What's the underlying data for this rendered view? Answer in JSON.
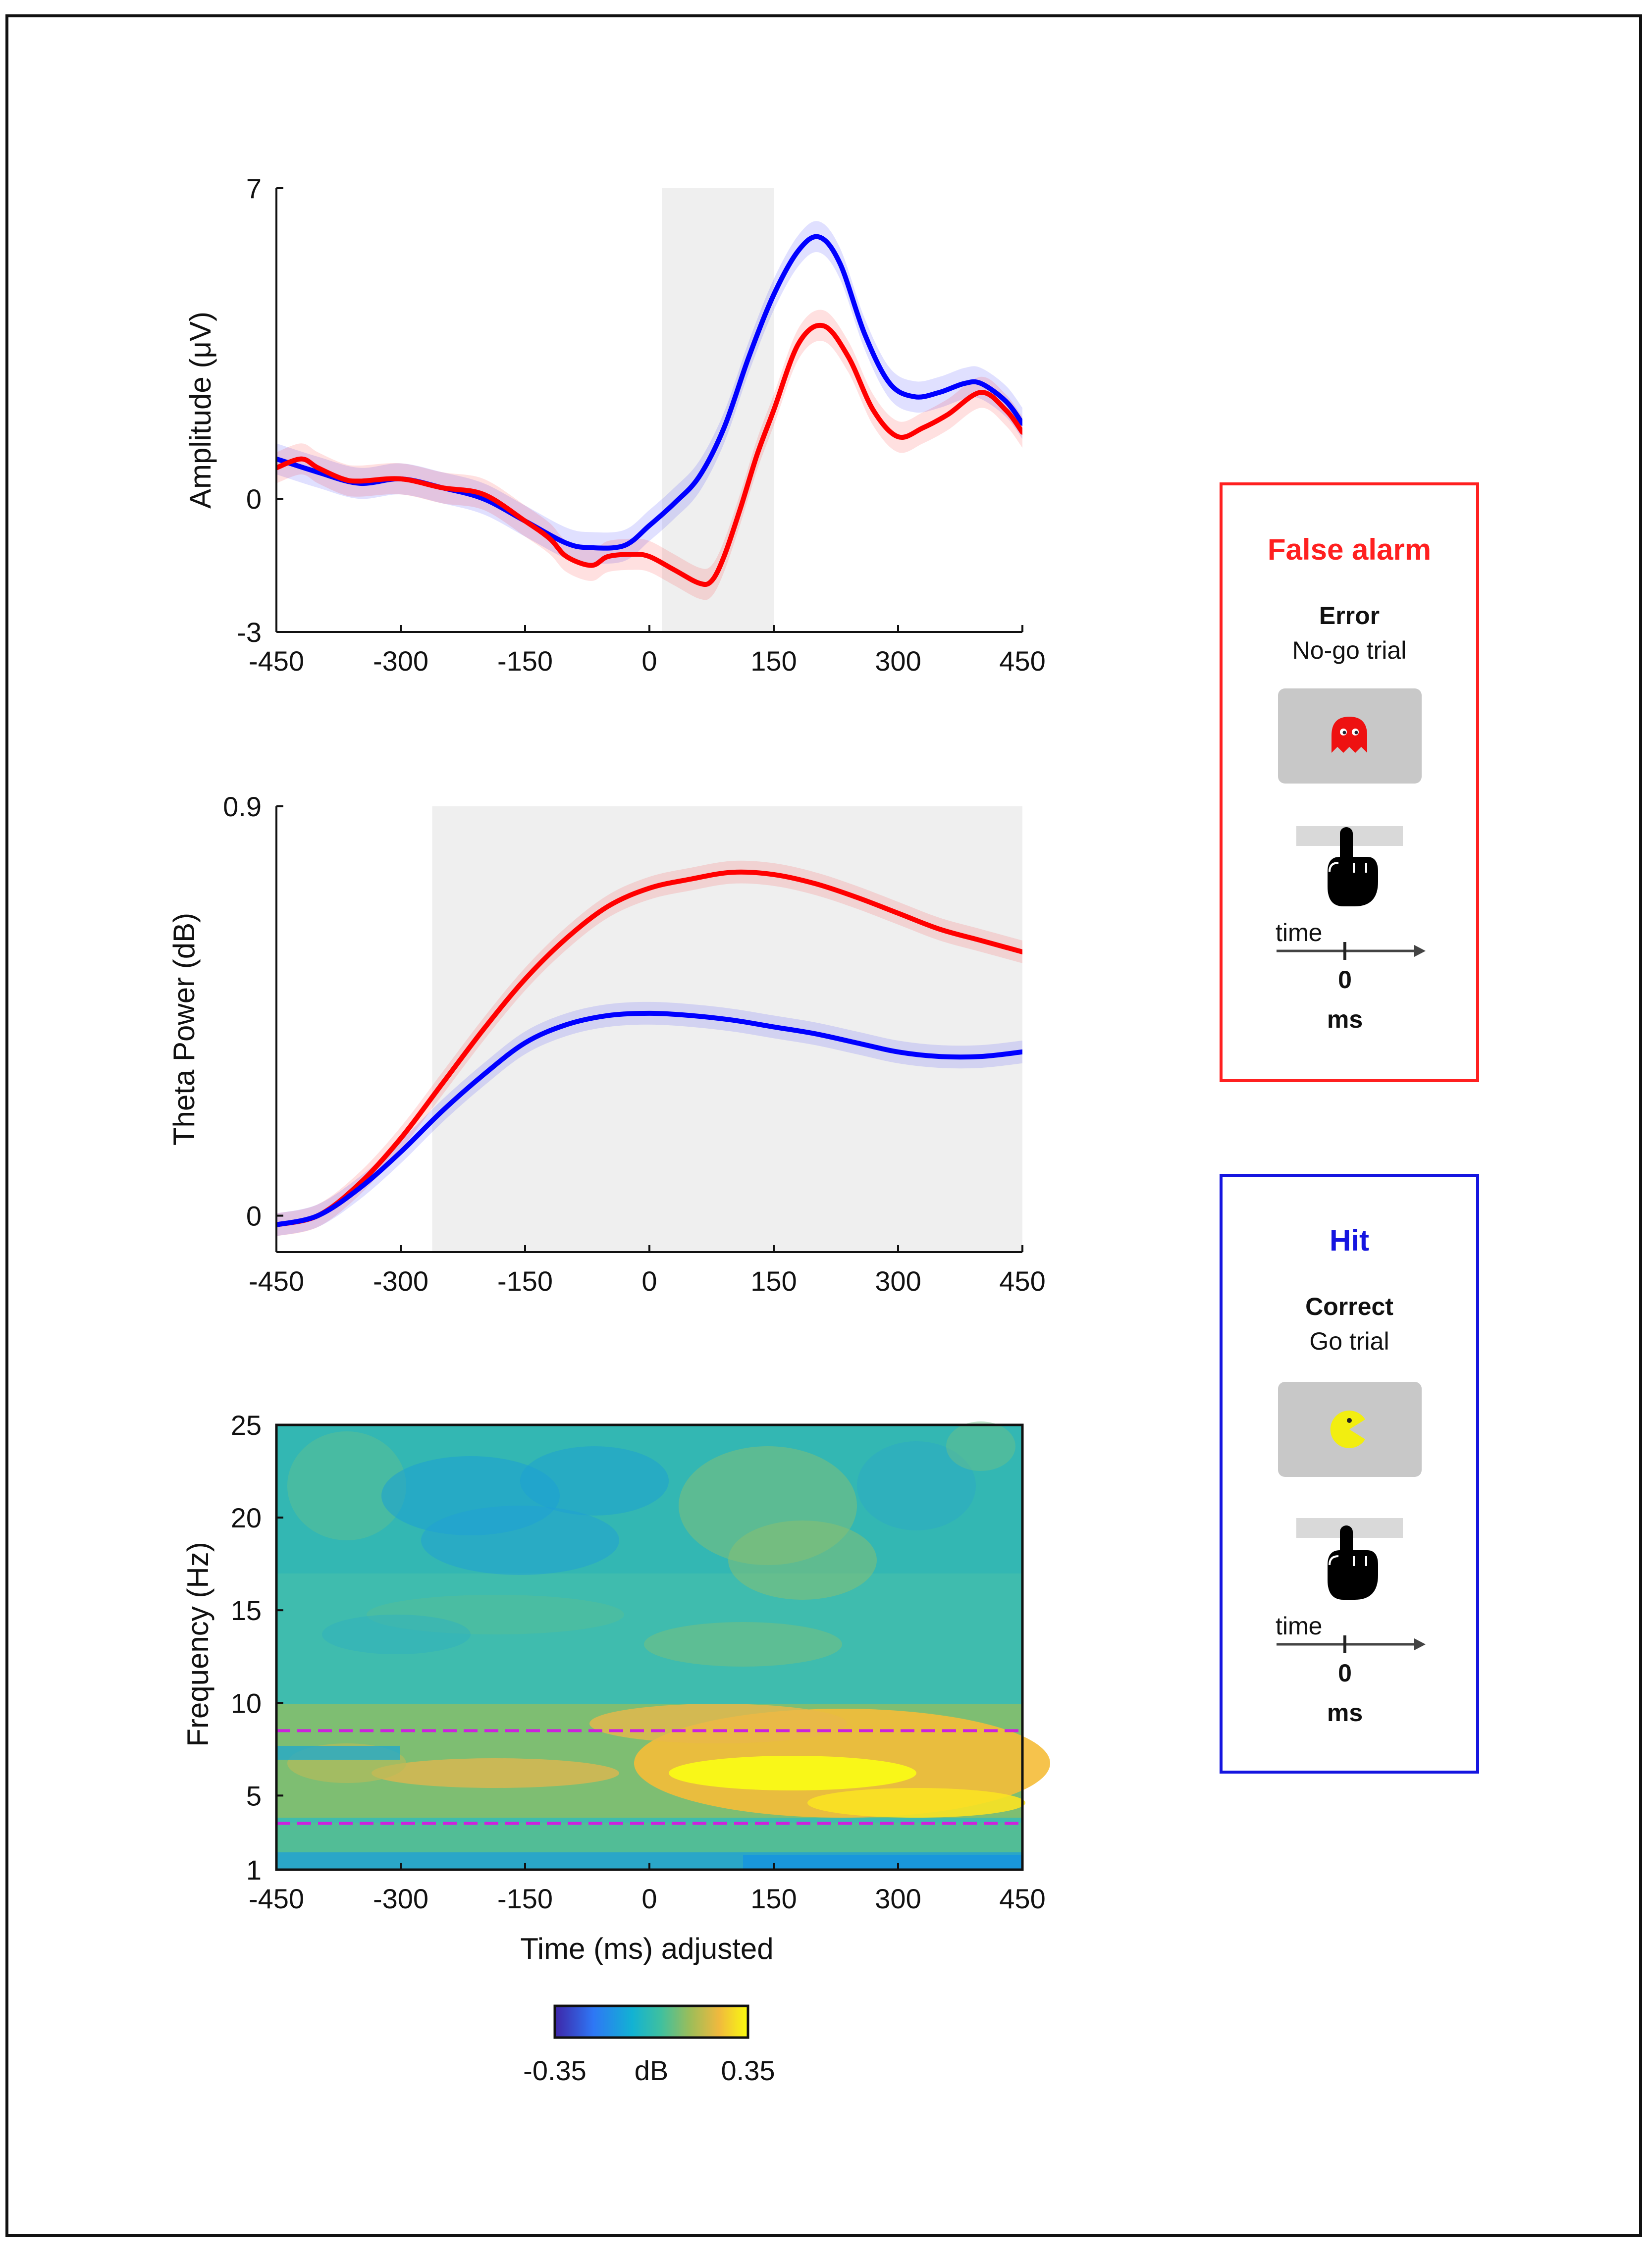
{
  "colors": {
    "false_alarm": "#ff0000",
    "hit": "#0000ff",
    "shade": "#efefef"
  },
  "chart_data": [
    {
      "type": "line",
      "ylabel": "Amplitude (μV)",
      "xlim": [
        -450,
        450
      ],
      "ylim": [
        -3,
        7
      ],
      "xticks": [
        "-450",
        "-300",
        "-150",
        "0",
        "150",
        "300",
        "450"
      ],
      "yticks": [
        "-3",
        "0",
        "7"
      ],
      "shaded_interval": [
        15,
        150
      ],
      "series": [
        {
          "name": "Hit",
          "color": "#0000ff",
          "x": [
            -450,
            -400,
            -350,
            -300,
            -250,
            -200,
            -150,
            -100,
            -70,
            -30,
            0,
            30,
            60,
            90,
            120,
            150,
            180,
            205,
            230,
            260,
            290,
            320,
            350,
            380,
            400,
            430,
            450
          ],
          "y": [
            0.9,
            0.6,
            0.35,
            0.45,
            0.25,
            0.0,
            -0.5,
            -1.0,
            -1.1,
            -1.05,
            -0.6,
            -0.1,
            0.5,
            1.6,
            3.2,
            4.6,
            5.6,
            5.9,
            5.3,
            3.7,
            2.6,
            2.3,
            2.4,
            2.6,
            2.6,
            2.2,
            1.7
          ]
        },
        {
          "name": "False alarm",
          "color": "#ff0000",
          "x": [
            -450,
            -420,
            -400,
            -370,
            -350,
            -300,
            -250,
            -200,
            -150,
            -120,
            -100,
            -70,
            -50,
            -20,
            0,
            30,
            60,
            75,
            90,
            110,
            130,
            150,
            180,
            210,
            240,
            270,
            300,
            330,
            360,
            400,
            430,
            450
          ],
          "y": [
            0.7,
            0.9,
            0.7,
            0.45,
            0.4,
            0.45,
            0.25,
            0.1,
            -0.5,
            -0.9,
            -1.3,
            -1.5,
            -1.3,
            -1.25,
            -1.3,
            -1.6,
            -1.9,
            -1.85,
            -1.3,
            -0.2,
            1.0,
            2.0,
            3.5,
            3.9,
            3.2,
            2.0,
            1.4,
            1.6,
            1.9,
            2.4,
            2.0,
            1.5
          ]
        }
      ]
    },
    {
      "type": "line",
      "ylabel": "Theta Power (dB)",
      "xlim": [
        -450,
        450
      ],
      "ylim": [
        -0.08,
        0.9
      ],
      "xticks": [
        "-450",
        "-300",
        "-150",
        "0",
        "150",
        "300",
        "450"
      ],
      "yticks": [
        "0",
        "0.9"
      ],
      "shaded_interval": [
        -262,
        450
      ],
      "series": [
        {
          "name": "False alarm",
          "color": "#ff0000",
          "x": [
            -450,
            -400,
            -350,
            -300,
            -250,
            -200,
            -150,
            -100,
            -50,
            0,
            50,
            100,
            150,
            200,
            250,
            300,
            350,
            400,
            450
          ],
          "y": [
            -0.02,
            0.0,
            0.07,
            0.17,
            0.29,
            0.41,
            0.52,
            0.61,
            0.68,
            0.72,
            0.74,
            0.755,
            0.75,
            0.73,
            0.7,
            0.665,
            0.63,
            0.605,
            0.58
          ]
        },
        {
          "name": "Hit",
          "color": "#0000ff",
          "x": [
            -450,
            -400,
            -350,
            -300,
            -250,
            -200,
            -150,
            -100,
            -50,
            0,
            50,
            100,
            150,
            200,
            250,
            300,
            350,
            400,
            450
          ],
          "y": [
            -0.02,
            0.0,
            0.06,
            0.14,
            0.23,
            0.31,
            0.38,
            0.42,
            0.44,
            0.445,
            0.44,
            0.43,
            0.415,
            0.4,
            0.38,
            0.36,
            0.35,
            0.35,
            0.36
          ]
        }
      ]
    },
    {
      "type": "heatmap",
      "xlabel": "Time (ms) adjusted",
      "ylabel": "Frequency (Hz)",
      "xlim": [
        -450,
        450
      ],
      "ylim": [
        1,
        25
      ],
      "xticks": [
        "-450",
        "-300",
        "-150",
        "0",
        "150",
        "300",
        "450"
      ],
      "yticks": [
        "1",
        "5",
        "10",
        "15",
        "20",
        "25"
      ],
      "theta_band_lines": [
        3.5,
        8.5
      ],
      "colorbar": {
        "min_label": "-0.35",
        "unit_label": "dB",
        "max_label": "0.35",
        "range": [
          -0.35,
          0.35
        ]
      }
    }
  ],
  "legend": {
    "false_alarm": {
      "title": "False alarm",
      "outcome": "Error",
      "trial": "No-go trial",
      "axis_word": "time",
      "zero": "0",
      "unit": "ms"
    },
    "hit": {
      "title": "Hit",
      "outcome": "Correct",
      "trial": "Go trial",
      "axis_word": "time",
      "zero": "0",
      "unit": "ms"
    }
  }
}
